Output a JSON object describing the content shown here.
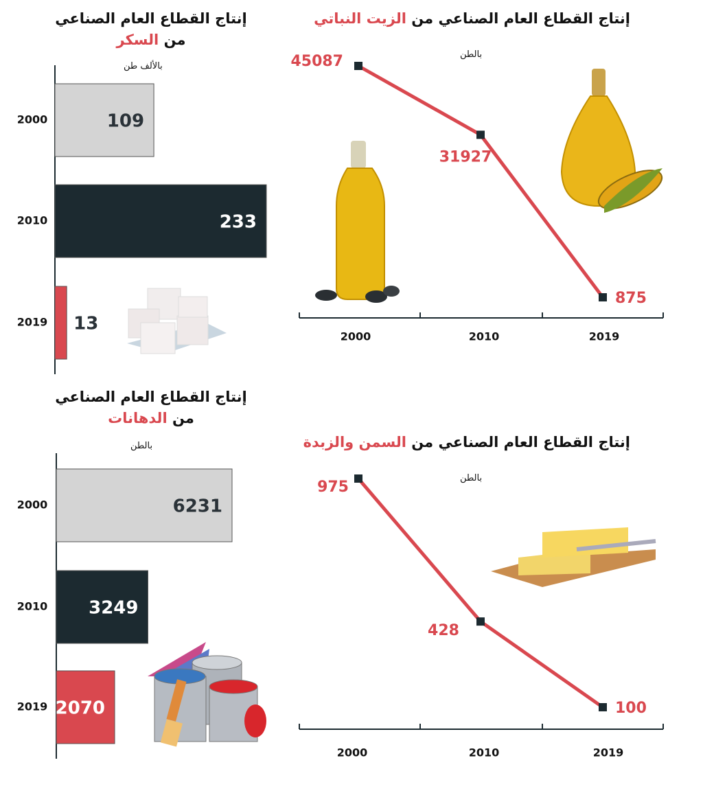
{
  "chart_data": [
    {
      "type": "line",
      "title": "إنتاج القطاع العام الصناعي من",
      "title_highlight": "الزيت النباتي",
      "unit": "بالطن",
      "categories": [
        "2000",
        "2010",
        "2019"
      ],
      "values": [
        45087,
        31927,
        875
      ],
      "color": "#d9484f",
      "marker_color": "#1c2a30"
    },
    {
      "type": "bar",
      "title": "إنتاج القطاع العام الصناعي من",
      "title_highlight": "السكر",
      "unit": "بالألف طن",
      "categories": [
        "2000",
        "2010",
        "2019"
      ],
      "values": [
        109,
        233,
        13
      ],
      "colors": [
        "#d4d4d4",
        "#1c2a30",
        "#d9484f"
      ]
    },
    {
      "type": "line",
      "title": "إنتاج القطاع العام الصناعي من",
      "title_highlight": "السمن والزبدة",
      "unit": "بالطن",
      "categories": [
        "2000",
        "2010",
        "2019"
      ],
      "values": [
        975,
        428,
        100
      ],
      "color": "#d9484f",
      "marker_color": "#1c2a30"
    },
    {
      "type": "bar",
      "title": "إنتاج القطاع العام الصناعي من",
      "title_highlight": "الدهانات",
      "unit": "بالطن",
      "categories": [
        "2000",
        "2010",
        "2019"
      ],
      "values": [
        6231,
        3249,
        2070
      ],
      "colors": [
        "#d4d4d4",
        "#1c2a30",
        "#d9484f"
      ]
    }
  ]
}
